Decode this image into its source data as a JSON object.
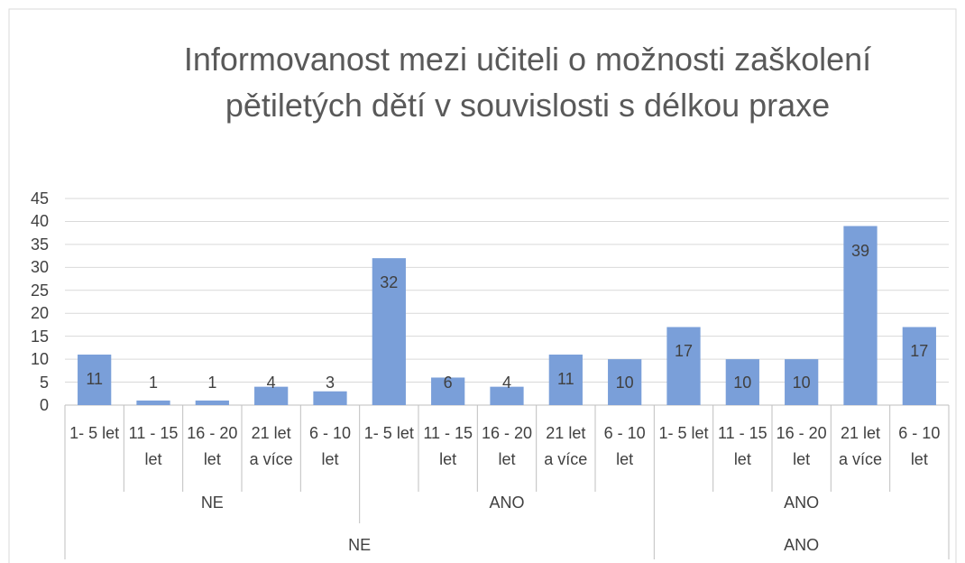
{
  "chart_data": {
    "type": "bar",
    "title": "Informovanost mezi učiteli o možnosti zaškolení pětiletých dětí v souvislosti s délkou praxe",
    "categories": [
      "1- 5 let",
      "11 - 15 let",
      "16 - 20 let",
      "21 let a více",
      "6 - 10 let",
      "1- 5 let",
      "11 - 15 let",
      "16 - 20 let",
      "21 let a více",
      "6 - 10 let",
      "1- 5 let",
      "11 - 15 let",
      "16 - 20 let",
      "21 let a více",
      "6 - 10 let"
    ],
    "category_groups": [
      "NE",
      null,
      null,
      null,
      null,
      "ANO",
      null,
      null,
      null,
      null,
      "ANO",
      null,
      null,
      null,
      null
    ],
    "category_supergroups": [
      "NE",
      null,
      null,
      null,
      null,
      null,
      null,
      null,
      null,
      null,
      "ANO",
      null,
      null,
      null,
      null
    ],
    "values": [
      11,
      1,
      1,
      4,
      3,
      32,
      6,
      4,
      11,
      10,
      17,
      10,
      10,
      39,
      17
    ],
    "color": "#7a9fd9",
    "ylim": [
      0,
      45
    ],
    "yticks": [
      0,
      5,
      10,
      15,
      20,
      25,
      30,
      35,
      40,
      45
    ],
    "grid": true
  }
}
